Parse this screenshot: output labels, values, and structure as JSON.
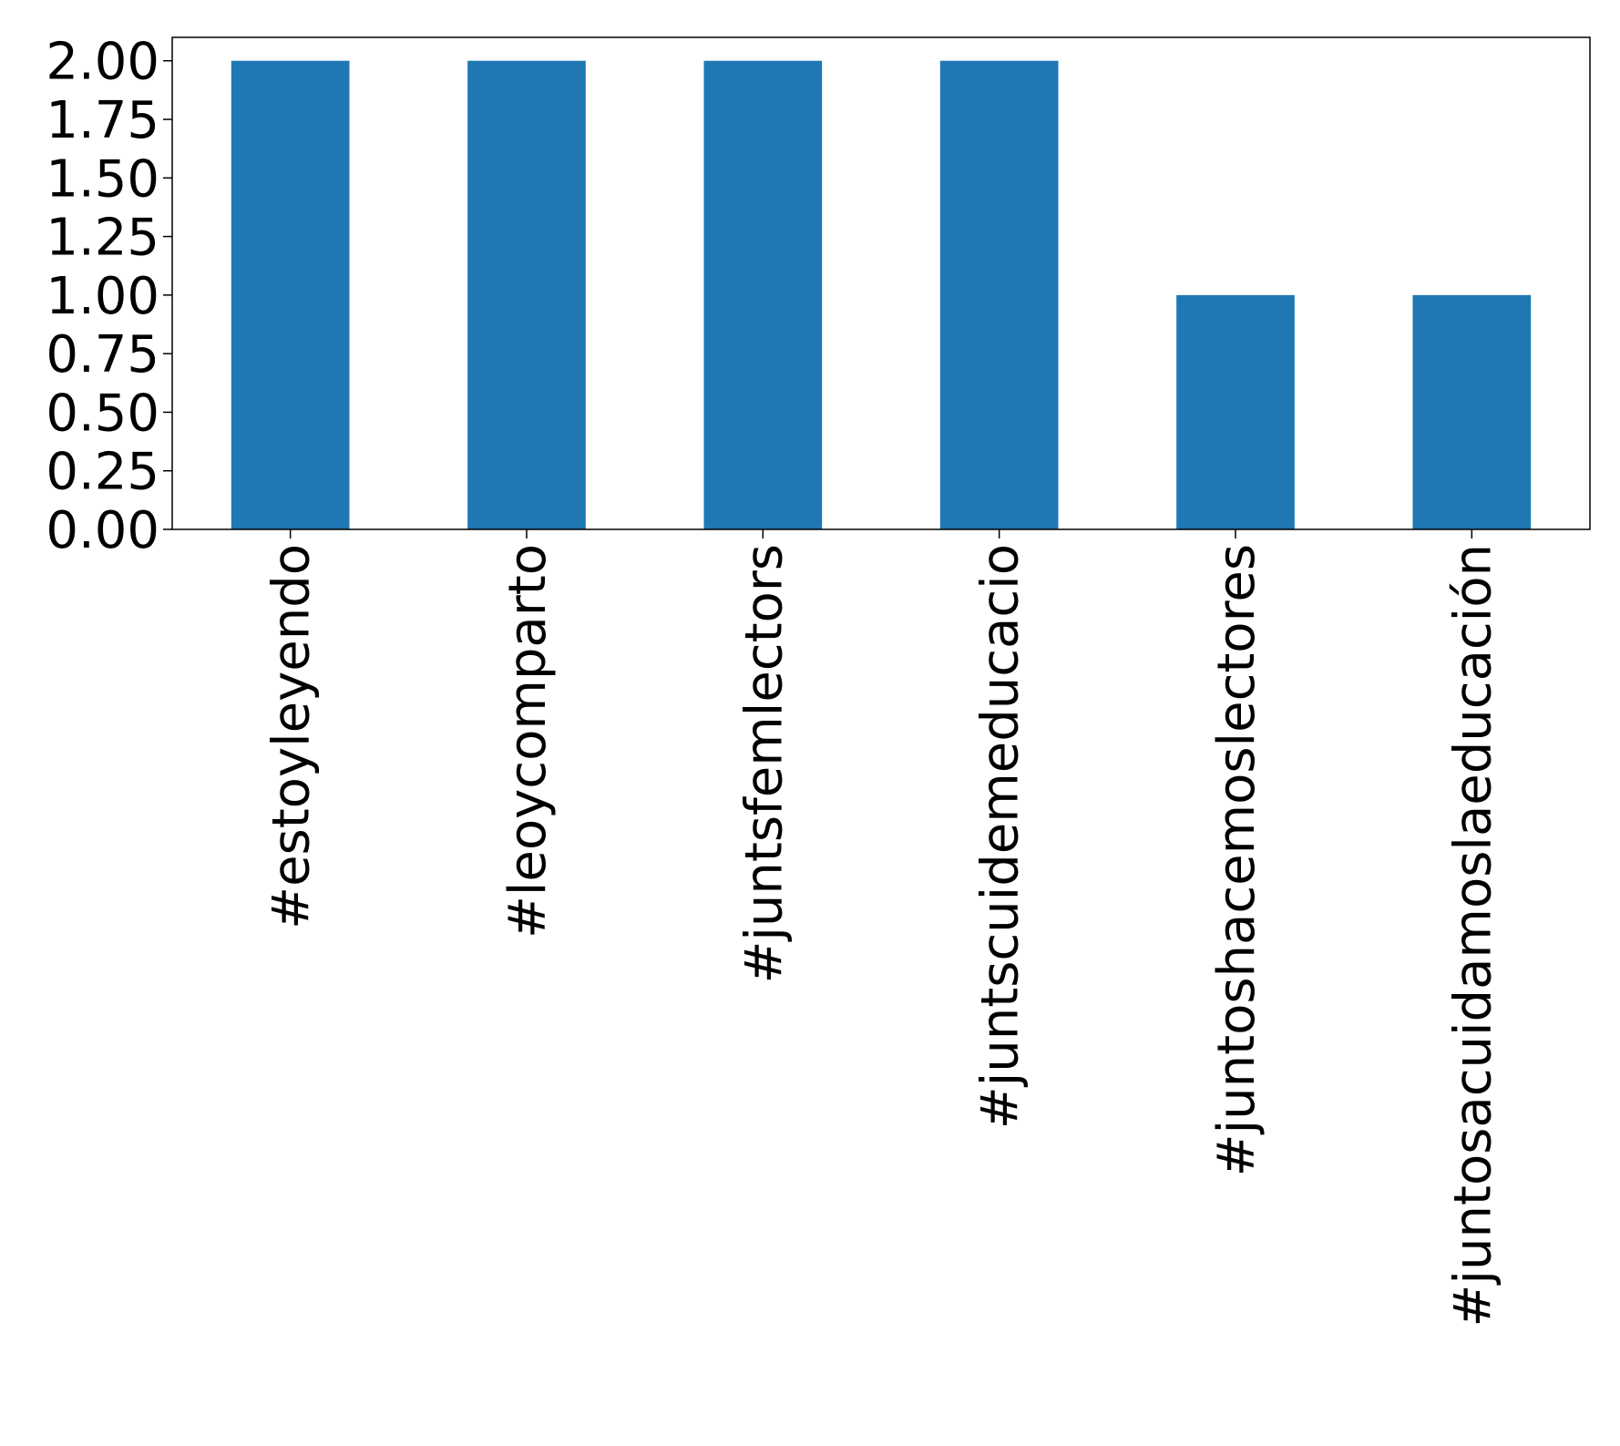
{
  "chart_data": {
    "type": "bar",
    "categories": [
      "#estoyleyendo",
      "#leoycomparto",
      "#juntsfemlectors",
      "#juntscuidemeducacio",
      "#juntoshacemoslectores",
      "#juntosacuidamoslaeducación"
    ],
    "values": [
      2,
      2,
      2,
      2,
      1,
      1
    ],
    "ylim": [
      0,
      2.1
    ],
    "yticks": [
      "0.00",
      "0.25",
      "0.50",
      "0.75",
      "1.00",
      "1.25",
      "1.50",
      "1.75",
      "2.00"
    ],
    "grid": false,
    "bar_color": "#1f77b4",
    "title": "",
    "xlabel": "",
    "ylabel": ""
  }
}
